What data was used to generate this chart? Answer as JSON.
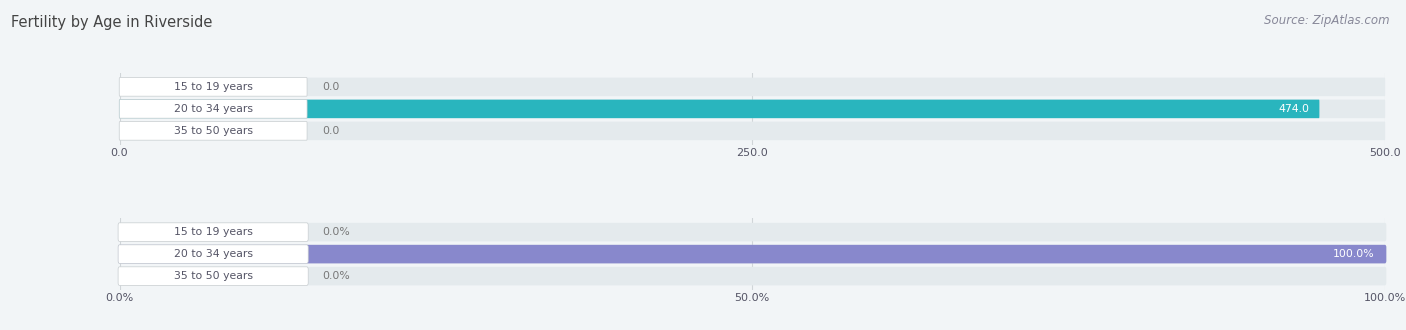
{
  "title": "Fertility by Age in Riverside",
  "source": "Source: ZipAtlas.com",
  "categories": [
    "15 to 19 years",
    "20 to 34 years",
    "35 to 50 years"
  ],
  "values_abs": [
    0.0,
    474.0,
    0.0
  ],
  "values_pct": [
    0.0,
    100.0,
    0.0
  ],
  "abs_max": 500.0,
  "pct_max": 100.0,
  "abs_ticks": [
    0.0,
    250.0,
    500.0
  ],
  "pct_ticks": [
    "0.0%",
    "50.0%",
    "100.0%"
  ],
  "pct_tick_vals": [
    0.0,
    50.0,
    100.0
  ],
  "bar_color_abs": "#29b5be",
  "bar_color_pct": "#8888cc",
  "bar_bg_color": "#e4eaed",
  "label_bg_color": "#ffffff",
  "bar_height": 0.62,
  "bg_color": "#f2f5f7",
  "title_color": "#444444",
  "label_color": "#555566",
  "value_color_inside": "#ffffff",
  "value_color_outside": "#777777",
  "grid_color": "#d0d5d8"
}
